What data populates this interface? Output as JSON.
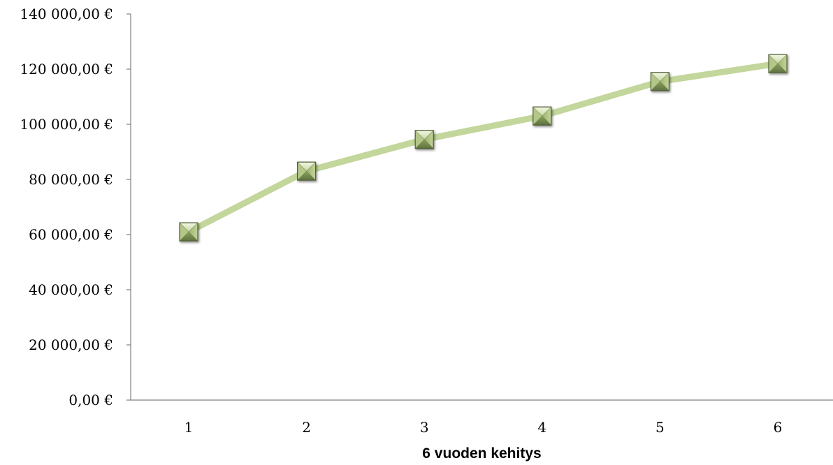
{
  "chart_data": {
    "type": "line",
    "title": "",
    "xlabel": "6 vuoden kehitys",
    "ylabel": "",
    "categories": [
      "1",
      "2",
      "3",
      "4",
      "5",
      "6"
    ],
    "series": [
      {
        "values": [
          61000,
          83000,
          94500,
          103000,
          115500,
          122000
        ]
      }
    ],
    "ylim": [
      0,
      140000
    ],
    "y_ticks": [
      0,
      20000,
      40000,
      60000,
      80000,
      100000,
      120000,
      140000
    ],
    "y_tick_labels": [
      "0,00 €",
      "20 000,00 €",
      "40 000,00 €",
      "60 000,00 €",
      "80 000,00 €",
      "100 000,00 €",
      "120 000,00 €",
      "140 000,00 €"
    ],
    "grid": false,
    "legend": "none",
    "colors": {
      "line": "#c3d69b",
      "marker_light": "#eef4dc",
      "marker_mid": "#a9bf7a",
      "marker_dark": "#6e8248",
      "marker_border": "#4f5f34",
      "axis": "#7f7f7f"
    }
  }
}
